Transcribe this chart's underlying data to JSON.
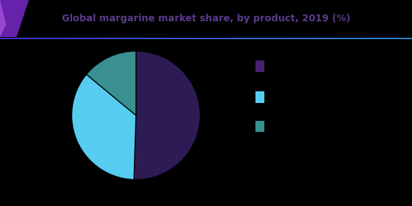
{
  "title": "Global margarine market share, by product, 2019 (%)",
  "slices": [
    50.5,
    35.5,
    14.0
  ],
  "colors": [
    "#2d1b55",
    "#55ccf0",
    "#3a9090"
  ],
  "legend_colors": [
    "#4a2070",
    "#55ccf0",
    "#3a9090"
  ],
  "legend_labels": [
    "",
    "",
    ""
  ],
  "background_color": "#000000",
  "title_color": "#5a3a8a",
  "title_fontsize": 10,
  "triangle_color1": "#7733aa",
  "triangle_color2": "#4422aa",
  "line_color_left": "#3333cc",
  "line_color_right": "#2266bb"
}
